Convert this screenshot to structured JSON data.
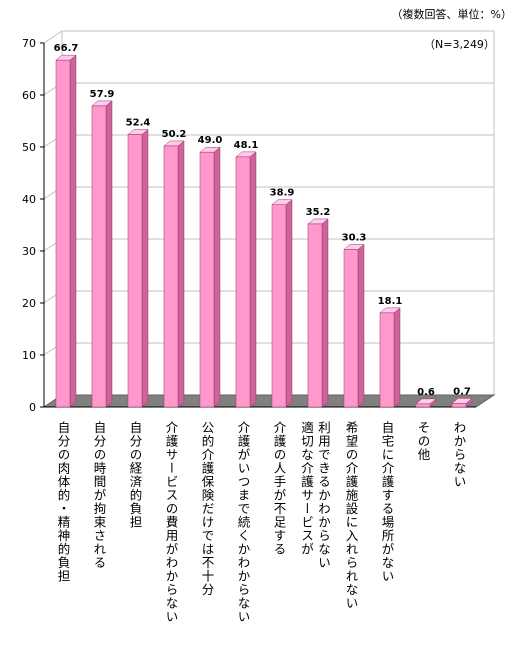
{
  "header": {
    "unit_note": "（複数回答、単位：%）",
    "sample_note": "（N=3,249）"
  },
  "colors": {
    "bar_front": "#ff99cc",
    "bar_side": "#cc6699",
    "bar_top": "#ffccee",
    "floor": "#808080",
    "grid": "#c0c0c0"
  },
  "chart_data": {
    "type": "bar",
    "title": "",
    "xlabel": "",
    "ylabel": "",
    "ylim": [
      0,
      70
    ],
    "yticks": [
      0,
      10,
      20,
      30,
      40,
      50,
      60,
      70
    ],
    "grid": true,
    "style": "3d-column",
    "categories": [
      "自分の肉体的・精神的負担",
      "自分の時間が拘束される",
      "自分の経済的負担",
      "介護サービスの費用がわからない",
      "公的介護保険だけでは不十分",
      "介護がいつまで続くかわからない",
      "介護の人手が不足する",
      [
        "利用できるかわからない",
        "適切な介護サービスが"
      ],
      "希望の介護施設に入れられない",
      "自宅に介護する場所がない",
      "その他",
      "わからない"
    ],
    "values": [
      66.7,
      57.9,
      52.4,
      50.2,
      49.0,
      48.1,
      38.9,
      35.2,
      30.3,
      18.1,
      0.6,
      0.7
    ],
    "value_labels": [
      "66.7",
      "57.9",
      "52.4",
      "50.2",
      "49.0",
      "48.1",
      "38.9",
      "35.2",
      "30.3",
      "18.1",
      "0.6",
      "0.7"
    ]
  }
}
